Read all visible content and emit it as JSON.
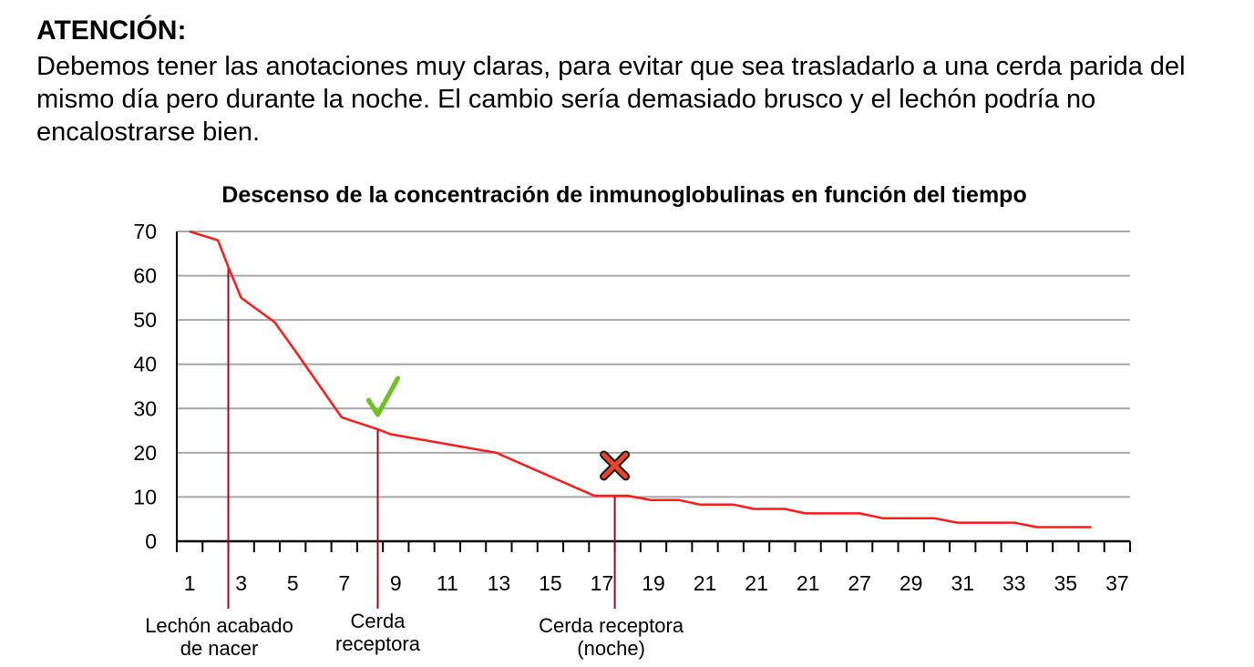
{
  "notice": {
    "heading": "ATENCIÓN:",
    "body": "Debemos tener las anotaciones muy claras, para evitar que sea trasladarlo a una cerda parida del mismo día pero durante la noche. El cambio sería demasiado brusco y el lechón podría no encalostrarse bien."
  },
  "chart_data": {
    "type": "line",
    "title": "Descenso de la concentración de inmunoglobulinas en función del tiempo",
    "xlabel": "",
    "ylabel": "",
    "ylim": [
      0,
      70
    ],
    "yticks": [
      0,
      10,
      20,
      30,
      40,
      50,
      60,
      70
    ],
    "grid": true,
    "x_tick_labels": [
      "1",
      "3",
      "5",
      "7",
      "9",
      "11",
      "13",
      "15",
      "17",
      "19",
      "21",
      "21",
      "21",
      "27",
      "29",
      "31",
      "33",
      "35",
      "37"
    ],
    "series": [
      {
        "color": "#ff1a1a",
        "points": [
          [
            1,
            70
          ],
          [
            2.1,
            68
          ],
          [
            2.5,
            62
          ],
          [
            3,
            55
          ],
          [
            4.3,
            49.5
          ],
          [
            5.1,
            43
          ],
          [
            6.9,
            28
          ],
          [
            8.3,
            25.3
          ],
          [
            8.8,
            24.2
          ],
          [
            12.9,
            20
          ],
          [
            16.7,
            10.3
          ],
          [
            18,
            10.3
          ],
          [
            18.9,
            9.3
          ],
          [
            20,
            9.3
          ],
          [
            20.8,
            8.3
          ],
          [
            22.1,
            8.3
          ],
          [
            22.9,
            7.3
          ],
          [
            24.1,
            7.3
          ],
          [
            24.9,
            6.3
          ],
          [
            27,
            6.3
          ],
          [
            27.9,
            5.2
          ],
          [
            29.9,
            5.2
          ],
          [
            30.8,
            4.2
          ],
          [
            33,
            4.2
          ],
          [
            33.9,
            3.2
          ],
          [
            36,
            3.2
          ]
        ]
      }
    ],
    "annotations": [
      {
        "label_lines": [
          "Lechón acabado",
          "de nacer"
        ],
        "x": 2.5,
        "y": 62,
        "symbol": ""
      },
      {
        "label_lines": [
          "Cerda",
          "receptora"
        ],
        "x": 8.3,
        "y": 25.3,
        "symbol": "check",
        "symbol_color": "#6cc21f"
      },
      {
        "label_lines": [
          "Cerda receptora",
          "(noche)"
        ],
        "x": 17.5,
        "y": 10.3,
        "symbol": "cross",
        "symbol_color": "#e8452c"
      }
    ]
  }
}
